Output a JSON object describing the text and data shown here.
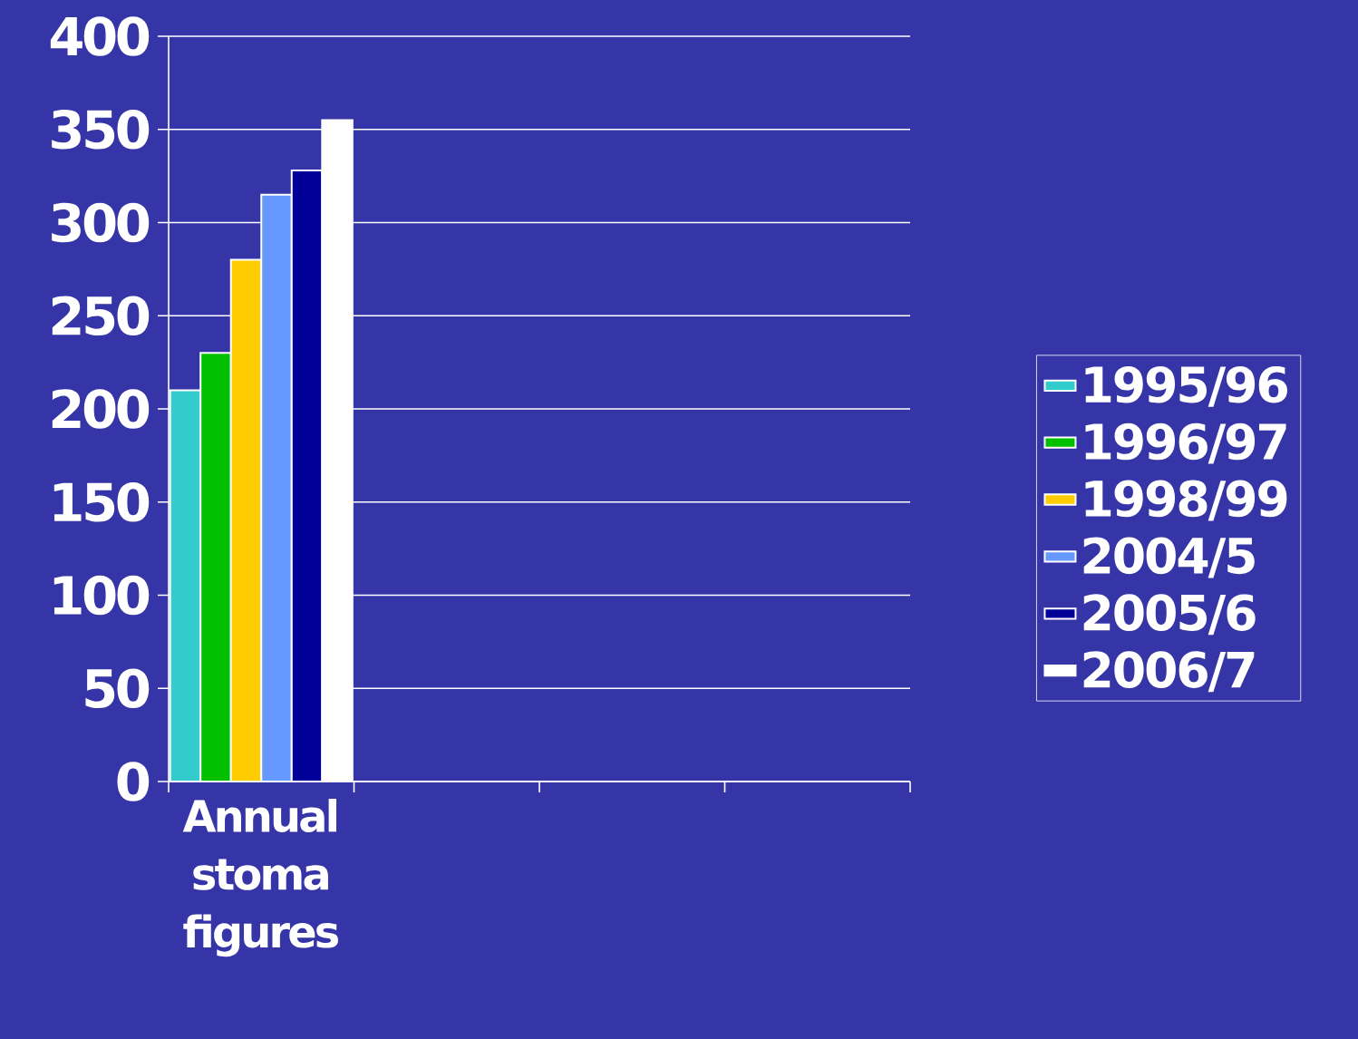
{
  "chart_data": {
    "type": "bar",
    "categories": [
      "Annual stoma figures",
      null,
      null,
      null
    ],
    "series": [
      {
        "name": "1995/96",
        "color": "#33cccc",
        "values": [
          210,
          null,
          null,
          null
        ]
      },
      {
        "name": "1996/97",
        "color": "#00c000",
        "values": [
          230,
          null,
          null,
          null
        ]
      },
      {
        "name": "1998/99",
        "color": "#ffcc00",
        "values": [
          280,
          null,
          null,
          null
        ]
      },
      {
        "name": "2004/5",
        "color": "#6699ff",
        "values": [
          315,
          null,
          null,
          null
        ]
      },
      {
        "name": "2005/6",
        "color": "#000099",
        "values": [
          328,
          null,
          null,
          null
        ]
      },
      {
        "name": "2006/7",
        "color": "#ffffff",
        "values": [
          355,
          null,
          null,
          null
        ]
      }
    ],
    "ylim": [
      0,
      400
    ],
    "yticks": [
      0,
      50,
      100,
      150,
      200,
      250,
      300,
      350,
      400
    ],
    "grid": "y",
    "legend": "right"
  }
}
